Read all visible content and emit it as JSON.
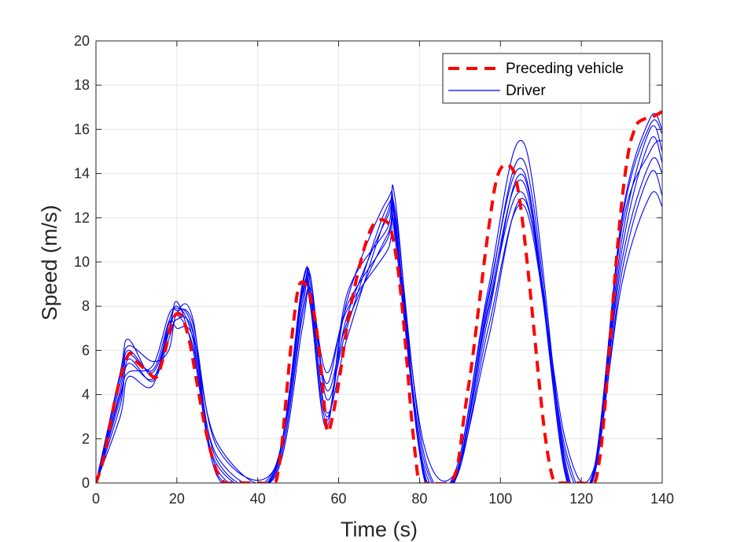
{
  "chart_data": {
    "type": "line",
    "title": "",
    "xlabel": "Time (s)",
    "ylabel": "Speed (m/s)",
    "xlim": [
      0,
      140
    ],
    "ylim": [
      0,
      20
    ],
    "xticks": [
      0,
      20,
      40,
      60,
      80,
      100,
      120,
      140
    ],
    "yticks": [
      0,
      2,
      4,
      6,
      8,
      10,
      12,
      14,
      16,
      18,
      20
    ],
    "grid": true,
    "legend_position": "top-right",
    "colors": {
      "preceding": "#ff0000",
      "driver": "#0000ff",
      "grid": "#e6e6e6",
      "axis": "#262626"
    },
    "series": [
      {
        "name": "Preceding vehicle",
        "style": "dashed",
        "x": [
          0,
          2,
          5,
          8,
          10,
          13,
          15,
          17,
          19,
          21,
          23,
          25,
          27,
          29,
          30.5,
          32,
          34,
          40,
          44,
          45,
          46,
          47,
          48,
          49,
          50,
          51,
          52,
          53,
          54,
          55,
          56,
          57,
          58,
          60,
          62,
          64,
          66,
          68,
          70,
          72,
          73,
          74,
          75,
          76,
          77,
          78,
          79,
          80,
          82,
          87,
          89,
          90,
          91,
          93,
          95,
          97,
          99,
          101,
          103,
          104,
          105,
          106,
          107,
          108,
          109,
          110,
          111,
          112,
          113,
          114,
          115,
          116,
          120,
          123,
          124,
          125,
          126,
          127,
          128,
          129,
          130,
          131,
          132,
          133,
          134,
          136,
          138,
          140
        ],
        "values": [
          0,
          1.2,
          4.0,
          5.8,
          5.5,
          5.0,
          4.8,
          5.9,
          7.4,
          7.6,
          6.5,
          4.5,
          2.5,
          1.0,
          0.3,
          0,
          0,
          0,
          0,
          0.5,
          1.8,
          3.8,
          5.8,
          7.5,
          8.8,
          9.1,
          8.9,
          8.4,
          7.6,
          6.3,
          4.5,
          2.5,
          2.6,
          4.5,
          7.0,
          8.9,
          10.4,
          11.5,
          11.9,
          11.8,
          11.4,
          10.5,
          9.2,
          7.4,
          5.2,
          3.0,
          1.2,
          0,
          0,
          0,
          0.5,
          1.5,
          3.0,
          5.5,
          8.5,
          11.4,
          13.7,
          14.4,
          14.2,
          13.6,
          12.5,
          11.0,
          9.3,
          7.5,
          5.6,
          3.8,
          2.2,
          1.0,
          0.2,
          0,
          0,
          0,
          0,
          0,
          0.5,
          1.8,
          3.8,
          6.2,
          8.6,
          10.8,
          12.7,
          14.2,
          15.3,
          15.9,
          16.3,
          16.5,
          16.6,
          16.8
        ]
      },
      {
        "name": "Driver",
        "style": "solid",
        "profiles": {
          "times": [
            0,
            6,
            8,
            14,
            18,
            20,
            24,
            30,
            44,
            51,
            53,
            57,
            62,
            72,
            74,
            81,
            89,
            97,
            106,
            116,
            123,
            130,
            137,
            140
          ],
          "driver_1": [
            0,
            4.5,
            6.0,
            5.0,
            7.0,
            8.0,
            6.5,
            0.4,
            0.5,
            8.8,
            9.0,
            3.0,
            7.5,
            12.0,
            11.8,
            0.5,
            0.4,
            8.0,
            13.5,
            0.6,
            0.4,
            11.0,
            16.0,
            15.0
          ],
          "driver_2": [
            0,
            3.5,
            5.6,
            4.6,
            6.5,
            7.4,
            6.8,
            1.0,
            0.3,
            7.5,
            8.5,
            4.5,
            8.0,
            11.0,
            12.3,
            1.4,
            0.2,
            7.0,
            12.5,
            1.6,
            0.2,
            9.5,
            14.0,
            13.0
          ],
          "driver_3": [
            0,
            4.0,
            5.0,
            5.3,
            7.6,
            7.8,
            7.2,
            1.6,
            0.6,
            8.2,
            9.4,
            3.8,
            7.0,
            12.5,
            11.0,
            0.8,
            0.6,
            8.8,
            15.3,
            1.0,
            0.5,
            12.0,
            16.5,
            16.0
          ],
          "driver_4": [
            0,
            5.0,
            6.5,
            4.8,
            6.8,
            8.2,
            6.0,
            0.8,
            0.4,
            8.5,
            8.0,
            2.5,
            8.5,
            11.5,
            12.8,
            0.3,
            0.3,
            7.5,
            13.8,
            0.4,
            0.3,
            10.5,
            15.5,
            14.5
          ],
          "driver_5": [
            0,
            3.0,
            4.8,
            4.4,
            7.2,
            7.0,
            6.6,
            1.8,
            0.2,
            7.0,
            8.8,
            5.0,
            7.8,
            10.5,
            11.5,
            1.8,
            0.5,
            6.5,
            12.8,
            2.0,
            0.6,
            9.0,
            13.0,
            12.5
          ],
          "driver_6": [
            0,
            4.8,
            6.2,
            5.5,
            6.0,
            7.7,
            7.4,
            0.3,
            0.5,
            9.0,
            8.6,
            3.2,
            6.5,
            12.2,
            12.0,
            0.6,
            0.2,
            8.3,
            14.5,
            0.8,
            0.3,
            11.5,
            15.0,
            15.5
          ],
          "driver_7": [
            0,
            3.8,
            5.4,
            4.7,
            6.9,
            7.6,
            6.2,
            1.2,
            0.3,
            7.8,
            9.3,
            4.2,
            7.2,
            11.2,
            11.3,
            1.1,
            0.4,
            7.8,
            13.0,
            1.3,
            0.5,
            10.0,
            14.5,
            14.0
          ],
          "driver_8": [
            0,
            4.2,
            5.8,
            5.1,
            7.3,
            7.9,
            6.9,
            0.6,
            0.6,
            8.6,
            8.3,
            2.8,
            8.2,
            12.8,
            11.6,
            0.4,
            0.6,
            8.5,
            14.0,
            0.5,
            0.4,
            11.8,
            16.2,
            15.8
          ]
        }
      }
    ]
  }
}
